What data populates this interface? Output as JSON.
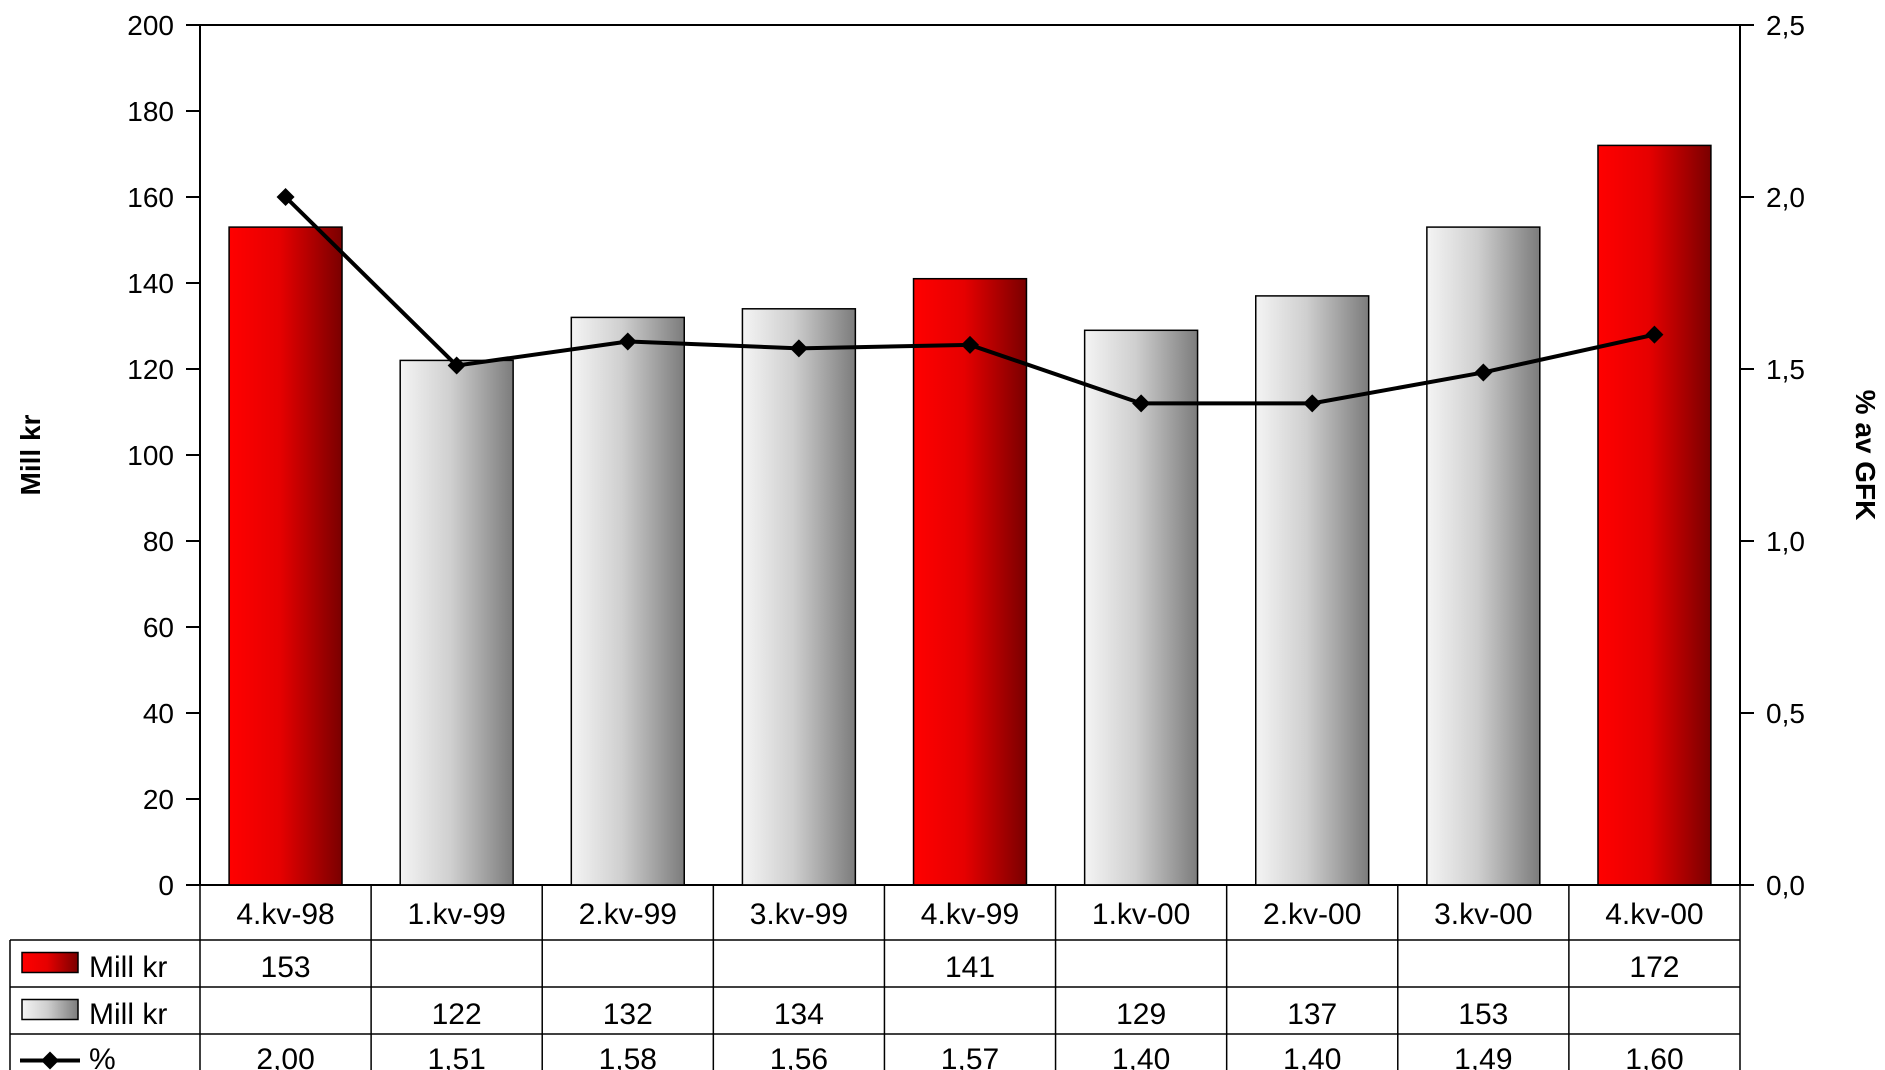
{
  "chart_data": {
    "type": "bar",
    "categories": [
      "4.kv-98",
      "1.kv-99",
      "2.kv-99",
      "3.kv-99",
      "4.kv-99",
      "1.kv-00",
      "2.kv-00",
      "3.kv-00",
      "4.kv-00"
    ],
    "ylabel": "Mill kr",
    "y2label": "% av GFK",
    "ylim": [
      0,
      200
    ],
    "y2lim": [
      0,
      2.5
    ],
    "yticks": [
      "0",
      "20",
      "40",
      "60",
      "80",
      "100",
      "120",
      "140",
      "160",
      "180",
      "200"
    ],
    "y2ticks": [
      "0,0",
      "0,5",
      "1,0",
      "1,5",
      "2,0",
      "2,5"
    ],
    "grid": false,
    "legend": "data-table-below",
    "series": [
      {
        "name": "Mill kr",
        "color": "#ee0000",
        "values": [
          153,
          null,
          null,
          null,
          141,
          null,
          null,
          null,
          172
        ],
        "labels": [
          "153",
          "",
          "",
          "",
          "141",
          "",
          "",
          "",
          "172"
        ]
      },
      {
        "name": "Mill kr",
        "color": "#c8c8c8",
        "values": [
          null,
          122,
          132,
          134,
          null,
          129,
          137,
          153,
          null
        ],
        "labels": [
          "",
          "122",
          "132",
          "134",
          "",
          "129",
          "137",
          "153",
          ""
        ]
      },
      {
        "name": "%",
        "type": "line",
        "axis": "right",
        "color": "#000000",
        "values": [
          2.0,
          1.51,
          1.58,
          1.56,
          1.57,
          1.4,
          1.4,
          1.49,
          1.6
        ],
        "labels": [
          "2,00",
          "1,51",
          "1,58",
          "1,56",
          "1,57",
          "1,40",
          "1,40",
          "1,49",
          "1,60"
        ]
      }
    ]
  }
}
